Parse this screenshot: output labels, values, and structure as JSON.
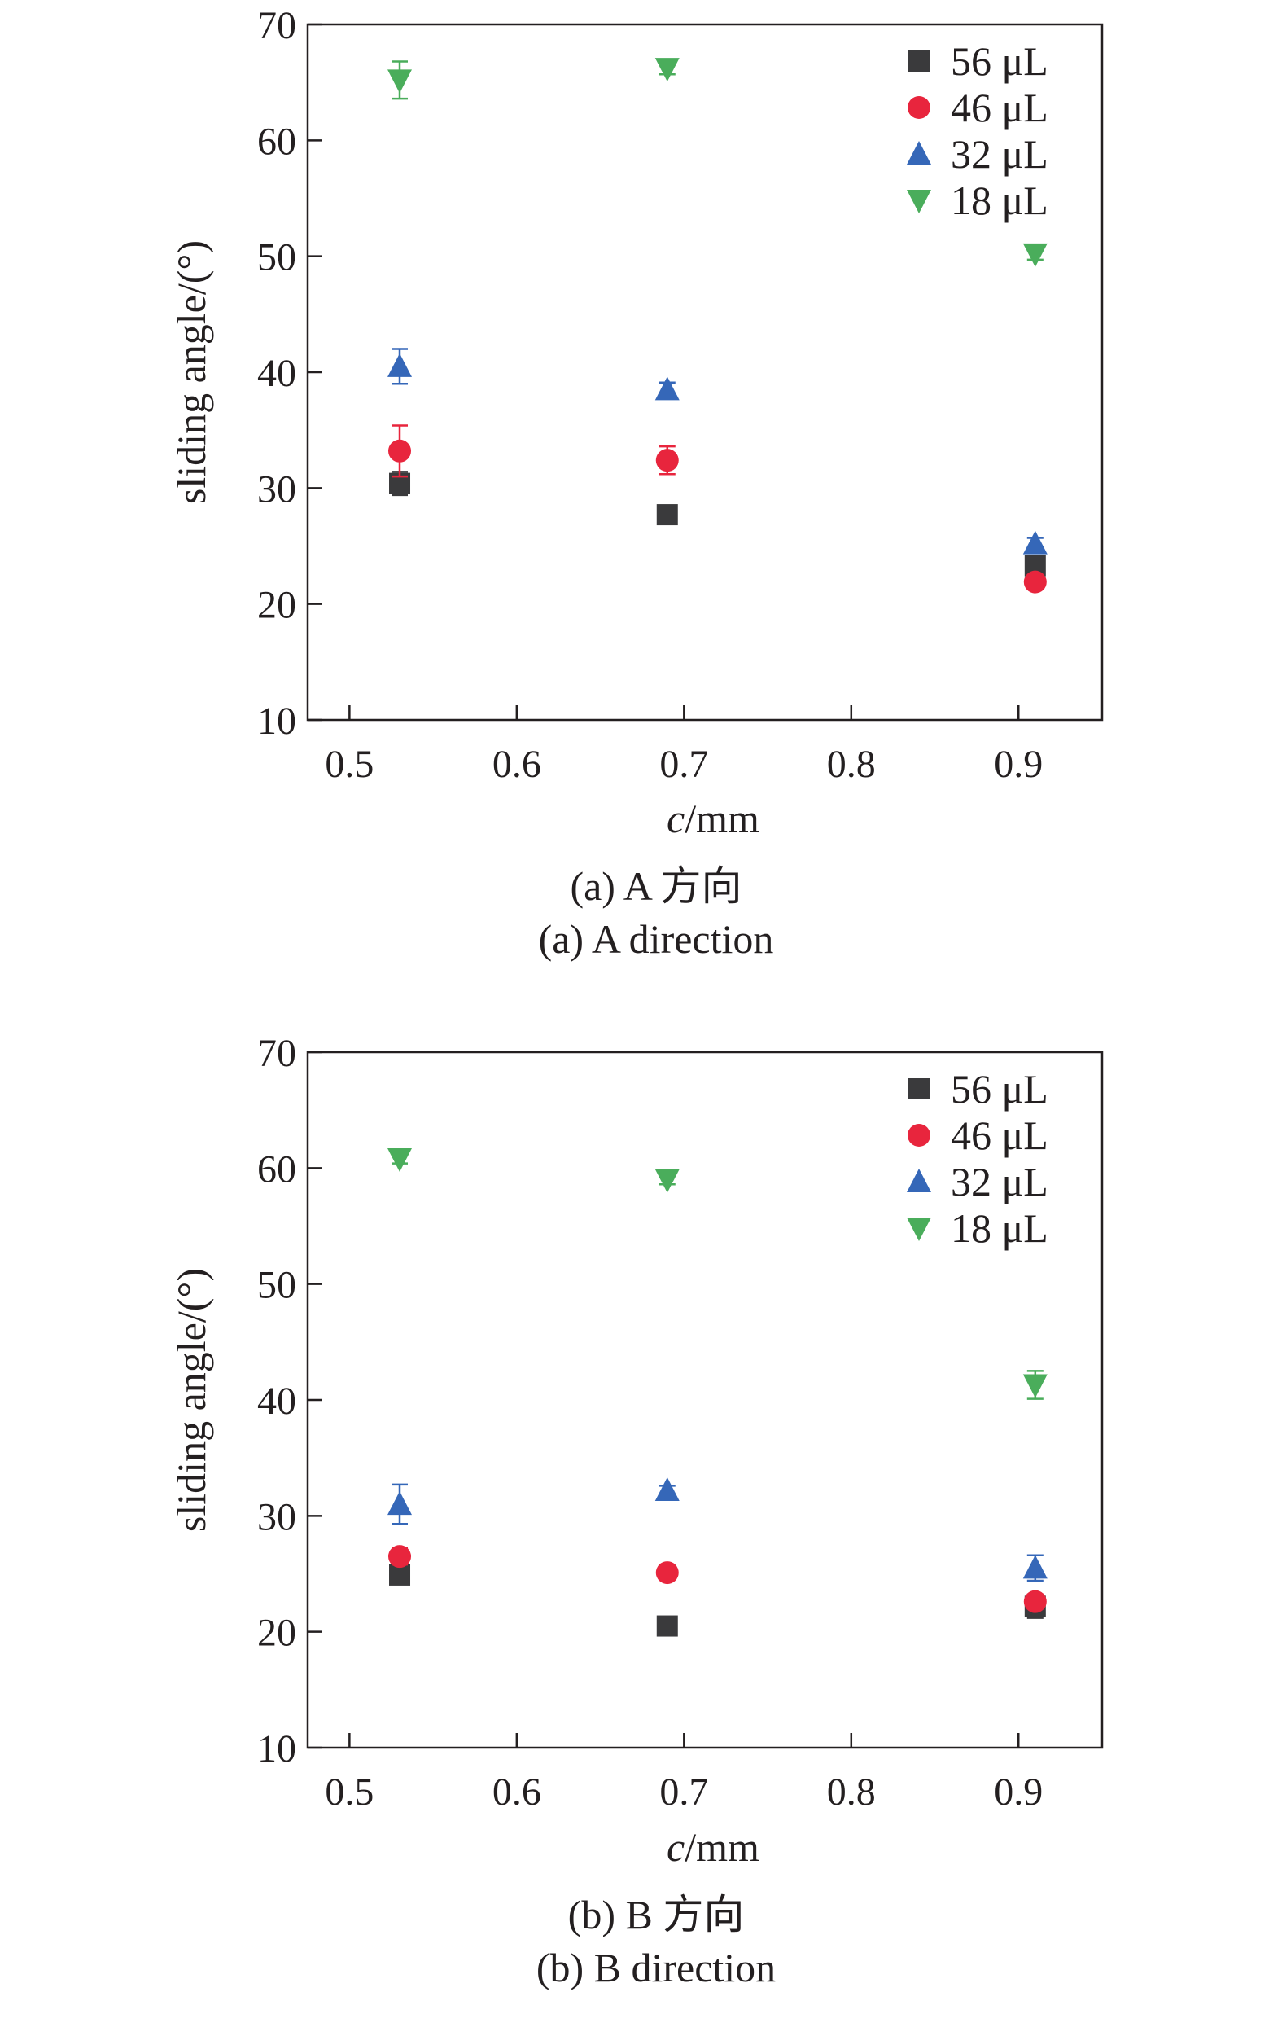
{
  "chart_data": [
    {
      "type": "scatter",
      "xlabel_italic": "c",
      "xlabel_rest": "/mm",
      "ylabel": "sliding angle/(°)",
      "caption_cn": "(a) A 方向",
      "caption_en": "(a) A direction",
      "xlim": [
        0.475,
        0.95
      ],
      "ylim": [
        10,
        70
      ],
      "xticks": [
        0.5,
        0.6,
        0.7,
        0.8,
        0.9
      ],
      "xtick_labels": [
        "0.5",
        "0.6",
        "0.7",
        "0.8",
        "0.9"
      ],
      "yticks": [
        10,
        20,
        30,
        40,
        50,
        60,
        70
      ],
      "ytick_labels": [
        "10",
        "20",
        "30",
        "40",
        "50",
        "60",
        "70"
      ],
      "legend_position": "top-right",
      "series": [
        {
          "name": "56 μL",
          "marker": "square",
          "color": "#3a3a3c",
          "points": [
            {
              "x": 0.53,
              "y": 30.4,
              "err": 1.0
            },
            {
              "x": 0.69,
              "y": 27.7,
              "err": 0.5
            },
            {
              "x": 0.91,
              "y": 23.3,
              "err": 0.8
            }
          ]
        },
        {
          "name": "46 μL",
          "marker": "circle",
          "color": "#e8253d",
          "points": [
            {
              "x": 0.53,
              "y": 33.2,
              "err": 2.2
            },
            {
              "x": 0.69,
              "y": 32.4,
              "err": 1.2
            },
            {
              "x": 0.91,
              "y": 21.9,
              "err": 0.5
            }
          ]
        },
        {
          "name": "32 μL",
          "marker": "triangle-up",
          "color": "#3567b8",
          "points": [
            {
              "x": 0.53,
              "y": 40.5,
              "err": 1.5
            },
            {
              "x": 0.69,
              "y": 38.5,
              "err": 0.6
            },
            {
              "x": 0.91,
              "y": 25.2,
              "err": 0.5
            }
          ]
        },
        {
          "name": "18 μL",
          "marker": "triangle-down",
          "color": "#4aad5b",
          "points": [
            {
              "x": 0.53,
              "y": 65.2,
              "err": 1.6
            },
            {
              "x": 0.69,
              "y": 66.2,
              "err": 0.5
            },
            {
              "x": 0.91,
              "y": 50.2,
              "err": 0.5
            }
          ]
        }
      ]
    },
    {
      "type": "scatter",
      "xlabel_italic": "c",
      "xlabel_rest": "/mm",
      "ylabel": "sliding angle/(°)",
      "caption_cn": "(b) B 方向",
      "caption_en": "(b) B direction",
      "xlim": [
        0.475,
        0.95
      ],
      "ylim": [
        10,
        70
      ],
      "xticks": [
        0.5,
        0.6,
        0.7,
        0.8,
        0.9
      ],
      "xtick_labels": [
        "0.5",
        "0.6",
        "0.7",
        "0.8",
        "0.9"
      ],
      "yticks": [
        10,
        20,
        30,
        40,
        50,
        60,
        70
      ],
      "ytick_labels": [
        "10",
        "20",
        "30",
        "40",
        "50",
        "60",
        "70"
      ],
      "legend_position": "top-right",
      "series": [
        {
          "name": "56 μL",
          "marker": "square",
          "color": "#3a3a3c",
          "points": [
            {
              "x": 0.53,
              "y": 24.9,
              "err": 0.4
            },
            {
              "x": 0.69,
              "y": 20.5,
              "err": 0.4
            },
            {
              "x": 0.91,
              "y": 22.2,
              "err": 1.0
            }
          ]
        },
        {
          "name": "46 μL",
          "marker": "circle",
          "color": "#e8253d",
          "points": [
            {
              "x": 0.53,
              "y": 26.5,
              "err": 0.7
            },
            {
              "x": 0.69,
              "y": 25.1,
              "err": 0.4
            },
            {
              "x": 0.91,
              "y": 22.6,
              "err": 0.6
            }
          ]
        },
        {
          "name": "32 μL",
          "marker": "triangle-up",
          "color": "#3567b8",
          "points": [
            {
              "x": 0.53,
              "y": 31.0,
              "err": 1.7
            },
            {
              "x": 0.69,
              "y": 32.2,
              "err": 0.4
            },
            {
              "x": 0.91,
              "y": 25.5,
              "err": 1.1
            }
          ]
        },
        {
          "name": "18 μL",
          "marker": "triangle-down",
          "color": "#4aad5b",
          "points": [
            {
              "x": 0.53,
              "y": 60.8,
              "err": 0.4
            },
            {
              "x": 0.69,
              "y": 59.0,
              "err": 0.4
            },
            {
              "x": 0.91,
              "y": 41.3,
              "err": 1.2
            }
          ]
        }
      ]
    }
  ]
}
